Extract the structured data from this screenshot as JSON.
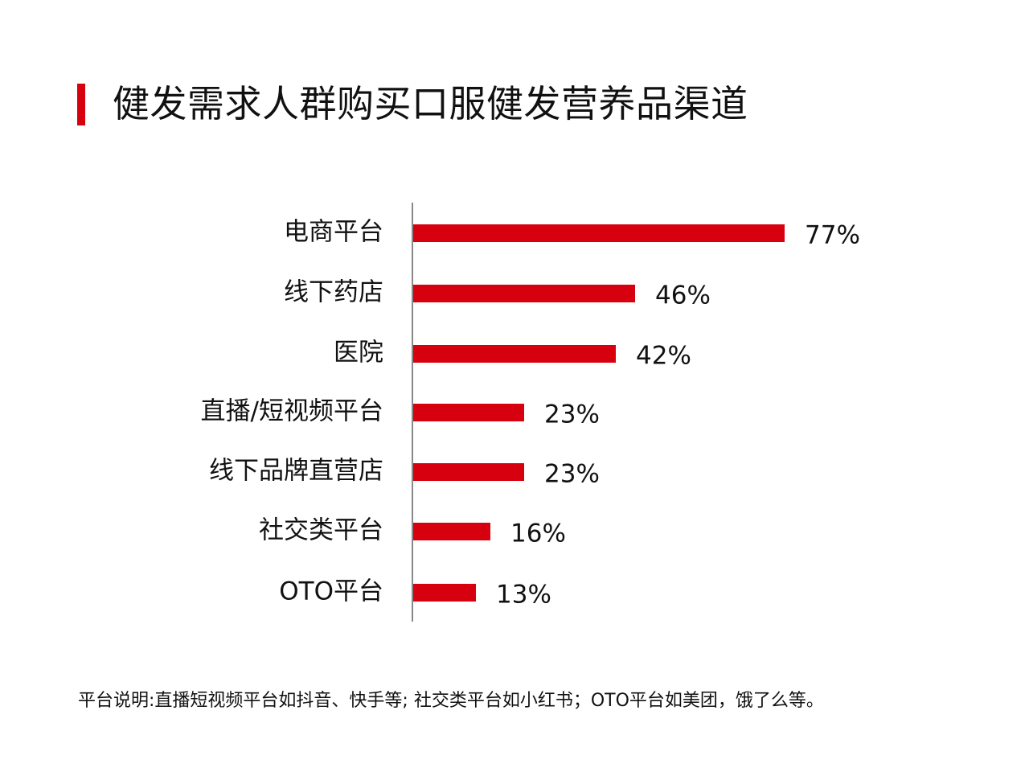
{
  "title": "健发需求人群购买口服健发营养品渠道",
  "note": "平台说明:直播短视频平台如抖音、快手等; 社交类平台如小红书；OTO平台如美团，饿了么等。",
  "colors": {
    "accent": "#d7000f",
    "bar": "#d7000f",
    "axis": "#888888",
    "text": "#111111"
  },
  "chart_data": {
    "type": "bar",
    "orientation": "horizontal",
    "categories": [
      "电商平台",
      "线下药店",
      "医院",
      "直播/短视频平台",
      "线下品牌直营店",
      "社交类平台",
      "OTO平台"
    ],
    "values": [
      77,
      46,
      42,
      23,
      23,
      16,
      13
    ],
    "value_labels": [
      "77%",
      "46%",
      "42%",
      "23%",
      "23%",
      "16%",
      "13%"
    ],
    "unit": "%",
    "xlim": [
      0,
      100
    ],
    "grid": false,
    "legend": "none"
  }
}
